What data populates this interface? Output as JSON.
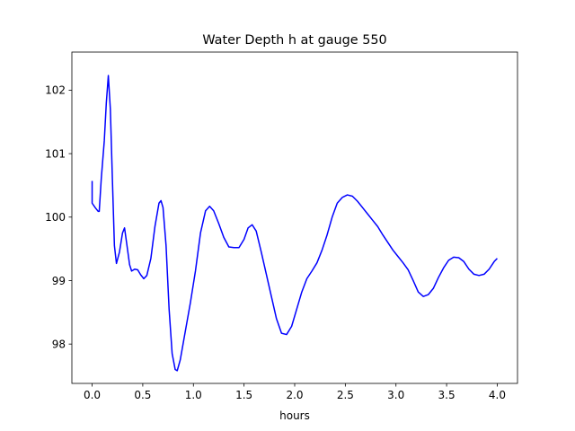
{
  "chart_data": {
    "type": "line",
    "title": "Water Depth h at gauge 550",
    "xlabel": "hours",
    "ylabel": "",
    "xlim": [
      -0.2,
      4.2
    ],
    "ylim": [
      97.38,
      102.6
    ],
    "x_ticks": [
      0.0,
      0.5,
      1.0,
      1.5,
      2.0,
      2.5,
      3.0,
      3.5,
      4.0
    ],
    "x_tick_labels": [
      "0.0",
      "0.5",
      "1.0",
      "1.5",
      "2.0",
      "2.5",
      "3.0",
      "3.5",
      "4.0"
    ],
    "y_ticks": [
      98,
      99,
      100,
      101,
      102
    ],
    "y_tick_labels": [
      "98",
      "99",
      "100",
      "101",
      "102"
    ],
    "grid": false,
    "series": [
      {
        "name": "",
        "color": "#0000ff",
        "points": [
          [
            0.0,
            100.57
          ],
          [
            0.0,
            100.22
          ],
          [
            0.03,
            100.15
          ],
          [
            0.06,
            100.09
          ],
          [
            0.07,
            100.09
          ],
          [
            0.09,
            100.6
          ],
          [
            0.12,
            101.2
          ],
          [
            0.14,
            101.8
          ],
          [
            0.16,
            102.23
          ],
          [
            0.18,
            101.7
          ],
          [
            0.2,
            100.6
          ],
          [
            0.22,
            99.55
          ],
          [
            0.24,
            99.27
          ],
          [
            0.27,
            99.45
          ],
          [
            0.3,
            99.75
          ],
          [
            0.32,
            99.83
          ],
          [
            0.34,
            99.6
          ],
          [
            0.37,
            99.25
          ],
          [
            0.39,
            99.15
          ],
          [
            0.42,
            99.18
          ],
          [
            0.45,
            99.17
          ],
          [
            0.48,
            99.09
          ],
          [
            0.51,
            99.03
          ],
          [
            0.54,
            99.08
          ],
          [
            0.58,
            99.35
          ],
          [
            0.62,
            99.85
          ],
          [
            0.66,
            100.22
          ],
          [
            0.68,
            100.26
          ],
          [
            0.7,
            100.15
          ],
          [
            0.73,
            99.55
          ],
          [
            0.76,
            98.55
          ],
          [
            0.79,
            97.85
          ],
          [
            0.82,
            97.6
          ],
          [
            0.84,
            97.58
          ],
          [
            0.87,
            97.75
          ],
          [
            0.92,
            98.2
          ],
          [
            0.97,
            98.65
          ],
          [
            1.02,
            99.15
          ],
          [
            1.07,
            99.75
          ],
          [
            1.12,
            100.1
          ],
          [
            1.16,
            100.17
          ],
          [
            1.2,
            100.1
          ],
          [
            1.25,
            99.9
          ],
          [
            1.3,
            99.68
          ],
          [
            1.35,
            99.53
          ],
          [
            1.4,
            99.52
          ],
          [
            1.45,
            99.52
          ],
          [
            1.5,
            99.65
          ],
          [
            1.54,
            99.83
          ],
          [
            1.58,
            99.88
          ],
          [
            1.62,
            99.78
          ],
          [
            1.67,
            99.45
          ],
          [
            1.72,
            99.1
          ],
          [
            1.77,
            98.75
          ],
          [
            1.82,
            98.4
          ],
          [
            1.87,
            98.17
          ],
          [
            1.92,
            98.15
          ],
          [
            1.97,
            98.28
          ],
          [
            2.02,
            98.55
          ],
          [
            2.07,
            98.82
          ],
          [
            2.12,
            99.03
          ],
          [
            2.17,
            99.15
          ],
          [
            2.22,
            99.28
          ],
          [
            2.27,
            99.48
          ],
          [
            2.32,
            99.72
          ],
          [
            2.37,
            100.0
          ],
          [
            2.42,
            100.22
          ],
          [
            2.47,
            100.31
          ],
          [
            2.52,
            100.35
          ],
          [
            2.57,
            100.33
          ],
          [
            2.62,
            100.25
          ],
          [
            2.67,
            100.15
          ],
          [
            2.72,
            100.05
          ],
          [
            2.77,
            99.95
          ],
          [
            2.82,
            99.85
          ],
          [
            2.87,
            99.72
          ],
          [
            2.92,
            99.6
          ],
          [
            2.97,
            99.48
          ],
          [
            3.02,
            99.38
          ],
          [
            3.07,
            99.28
          ],
          [
            3.12,
            99.17
          ],
          [
            3.17,
            99.0
          ],
          [
            3.22,
            98.82
          ],
          [
            3.27,
            98.75
          ],
          [
            3.32,
            98.78
          ],
          [
            3.37,
            98.88
          ],
          [
            3.42,
            99.05
          ],
          [
            3.47,
            99.2
          ],
          [
            3.52,
            99.32
          ],
          [
            3.57,
            99.37
          ],
          [
            3.62,
            99.36
          ],
          [
            3.67,
            99.3
          ],
          [
            3.72,
            99.18
          ],
          [
            3.77,
            99.1
          ],
          [
            3.82,
            99.08
          ],
          [
            3.87,
            99.1
          ],
          [
            3.92,
            99.18
          ],
          [
            3.97,
            99.3
          ],
          [
            4.0,
            99.35
          ]
        ]
      }
    ]
  }
}
